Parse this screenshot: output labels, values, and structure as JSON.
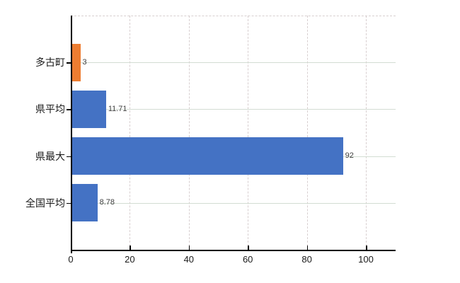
{
  "chart_data": {
    "type": "bar",
    "orientation": "horizontal",
    "title": "",
    "categories": [
      "多古町",
      "県平均",
      "県最大",
      "全国平均"
    ],
    "values": [
      3,
      11.71,
      92,
      8.78
    ],
    "value_labels": [
      "3",
      "11.71",
      "92",
      "8.78"
    ],
    "bar_colors": [
      "#ed7d31",
      "#4472c4",
      "#4472c4",
      "#4472c4"
    ],
    "x_ticks": [
      0,
      20,
      40,
      60,
      80,
      100
    ],
    "x_tick_labels": [
      "0",
      "20",
      "40",
      "60",
      "80",
      "100"
    ],
    "xlim": [
      0,
      110
    ],
    "legend": "none",
    "grid": {
      "vertical": "dashed",
      "horizontal_row_lines": "solid",
      "top_border": "dashed"
    }
  },
  "colors": {
    "bar_blue": "#4472c4",
    "bar_orange": "#ed7d31",
    "axis": "#000000",
    "grid_vertical": "#d8cfd0",
    "grid_horizontal": "#d3ddd3",
    "text": "#1a1a1a",
    "value_text": "#404040",
    "background": "#ffffff"
  }
}
